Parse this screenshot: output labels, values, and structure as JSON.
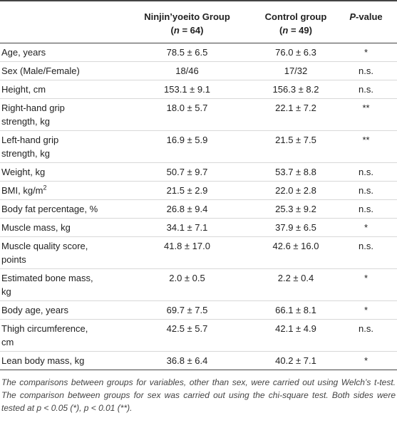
{
  "table": {
    "header": [
      {
        "line1": "",
        "line2": null
      },
      {
        "line1": "Ninjin’yoeito Group",
        "line2": {
          "open": "(",
          "n": "n",
          "rest": " = 64)"
        }
      },
      {
        "line1": "Control group",
        "line2": {
          "open": "(",
          "n": "n",
          "rest": " = 49)"
        }
      },
      {
        "line1": "P",
        "line1_rest": "-value",
        "line2": null
      }
    ],
    "rows": [
      {
        "label": [
          "Age, years"
        ],
        "g1": "78.5 ± 6.5",
        "g2": "76.0 ± 6.3",
        "p": "*"
      },
      {
        "label": [
          "Sex (Male/Female)"
        ],
        "g1": "18/46",
        "g2": "17/32",
        "p": "n.s."
      },
      {
        "label": [
          "Height, cm"
        ],
        "g1": "153.1 ± 9.1",
        "g2": "156.3 ± 8.2",
        "p": "n.s."
      },
      {
        "label": [
          "Right-hand grip",
          "strength, kg"
        ],
        "g1": "18.0 ± 5.7",
        "g2": "22.1 ± 7.2",
        "p": "**"
      },
      {
        "label": [
          "Left-hand grip",
          "strength, kg"
        ],
        "g1": "16.9 ± 5.9",
        "g2": "21.5 ± 7.5",
        "p": "**"
      },
      {
        "label": [
          "Weight, kg"
        ],
        "g1": "50.7 ± 9.7",
        "g2": "53.7 ± 8.8",
        "p": "n.s."
      },
      {
        "label": [
          "BMI, kg/m"
        ],
        "label_sup": "2",
        "g1": "21.5 ± 2.9",
        "g2": "22.0 ± 2.8",
        "p": "n.s."
      },
      {
        "label": [
          "Body fat percentage, %"
        ],
        "g1": "26.8 ± 9.4",
        "g2": "25.3 ± 9.2",
        "p": "n.s."
      },
      {
        "label": [
          "Muscle mass, kg"
        ],
        "g1": "34.1 ± 7.1",
        "g2": "37.9 ± 6.5",
        "p": "*"
      },
      {
        "label": [
          "Muscle quality score,",
          "points"
        ],
        "g1": "41.8 ± 17.0",
        "g2": "42.6 ± 16.0",
        "p": "n.s."
      },
      {
        "label": [
          "Estimated bone mass,",
          "kg"
        ],
        "g1": "2.0 ± 0.5",
        "g2": "2.2 ± 0.4",
        "p": "*"
      },
      {
        "label": [
          "Body age, years"
        ],
        "g1": "69.7 ± 7.5",
        "g2": "66.1 ± 8.1",
        "p": "*"
      },
      {
        "label": [
          "Thigh circumference,",
          "cm"
        ],
        "g1": "42.5 ± 5.7",
        "g2": "42.1 ± 4.9",
        "p": "n.s."
      },
      {
        "label": [
          "Lean body mass, kg"
        ],
        "g1": "36.8 ± 6.4",
        "g2": "40.2 ± 7.1",
        "p": "*"
      }
    ],
    "footnote": "The comparisons between groups for variables, other than sex, were carried out using Welch’s t-test. The comparison between groups for sex was carried out using the chi-square test. Both sides were tested at p < 0.05 (*), p < 0.01 (**)."
  }
}
